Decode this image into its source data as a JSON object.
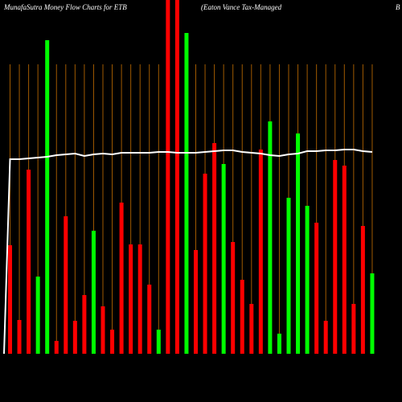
{
  "chart_data": {
    "type": "bar",
    "title": "MunafaSutra  Money Flow  Charts for ETB",
    "subtitle": "(Eaton  Vance   Tax-Managed",
    "title_right": "B",
    "ylim": [
      0,
      440
    ],
    "grid": true,
    "grid_color": "#a05a00",
    "series": [
      {
        "values": [
          135,
          42,
          229,
          96,
          390,
          16,
          171,
          41,
          73,
          153,
          59,
          30,
          188,
          136,
          136,
          86,
          30,
          440,
          440,
          399,
          129,
          224,
          262,
          236,
          139,
          92,
          62,
          254,
          289,
          25,
          194,
          274,
          184,
          163,
          41,
          241,
          234,
          62,
          159,
          100
        ],
        "colors": [
          "#ff0000",
          "#ff0000",
          "#ff0000",
          "#00ff00",
          "#00ff00",
          "#ff0000",
          "#ff0000",
          "#ff0000",
          "#ff0000",
          "#00ff00",
          "#ff0000",
          "#ff0000",
          "#ff0000",
          "#ff0000",
          "#ff0000",
          "#ff0000",
          "#00ff00",
          "#ff0000",
          "#ff0000",
          "#00ff00",
          "#ff0000",
          "#ff0000",
          "#ff0000",
          "#00ff00",
          "#ff0000",
          "#ff0000",
          "#ff0000",
          "#ff0000",
          "#00ff00",
          "#00ff00",
          "#00ff00",
          "#00ff00",
          "#00ff00",
          "#ff0000",
          "#ff0000",
          "#ff0000",
          "#ff0000",
          "#ff0000",
          "#ff0000",
          "#00ff00"
        ]
      },
      {
        "type": "line",
        "color": "#ffffff",
        "values": [
          242,
          242,
          243,
          244,
          245,
          247,
          248,
          249,
          246,
          248,
          249,
          248,
          250,
          250,
          250,
          250,
          251,
          251,
          250,
          250,
          250,
          251,
          252,
          253,
          253,
          251,
          250,
          249,
          247,
          246,
          248,
          249,
          252,
          252,
          253,
          253,
          254,
          254,
          252,
          251
        ]
      }
    ]
  }
}
